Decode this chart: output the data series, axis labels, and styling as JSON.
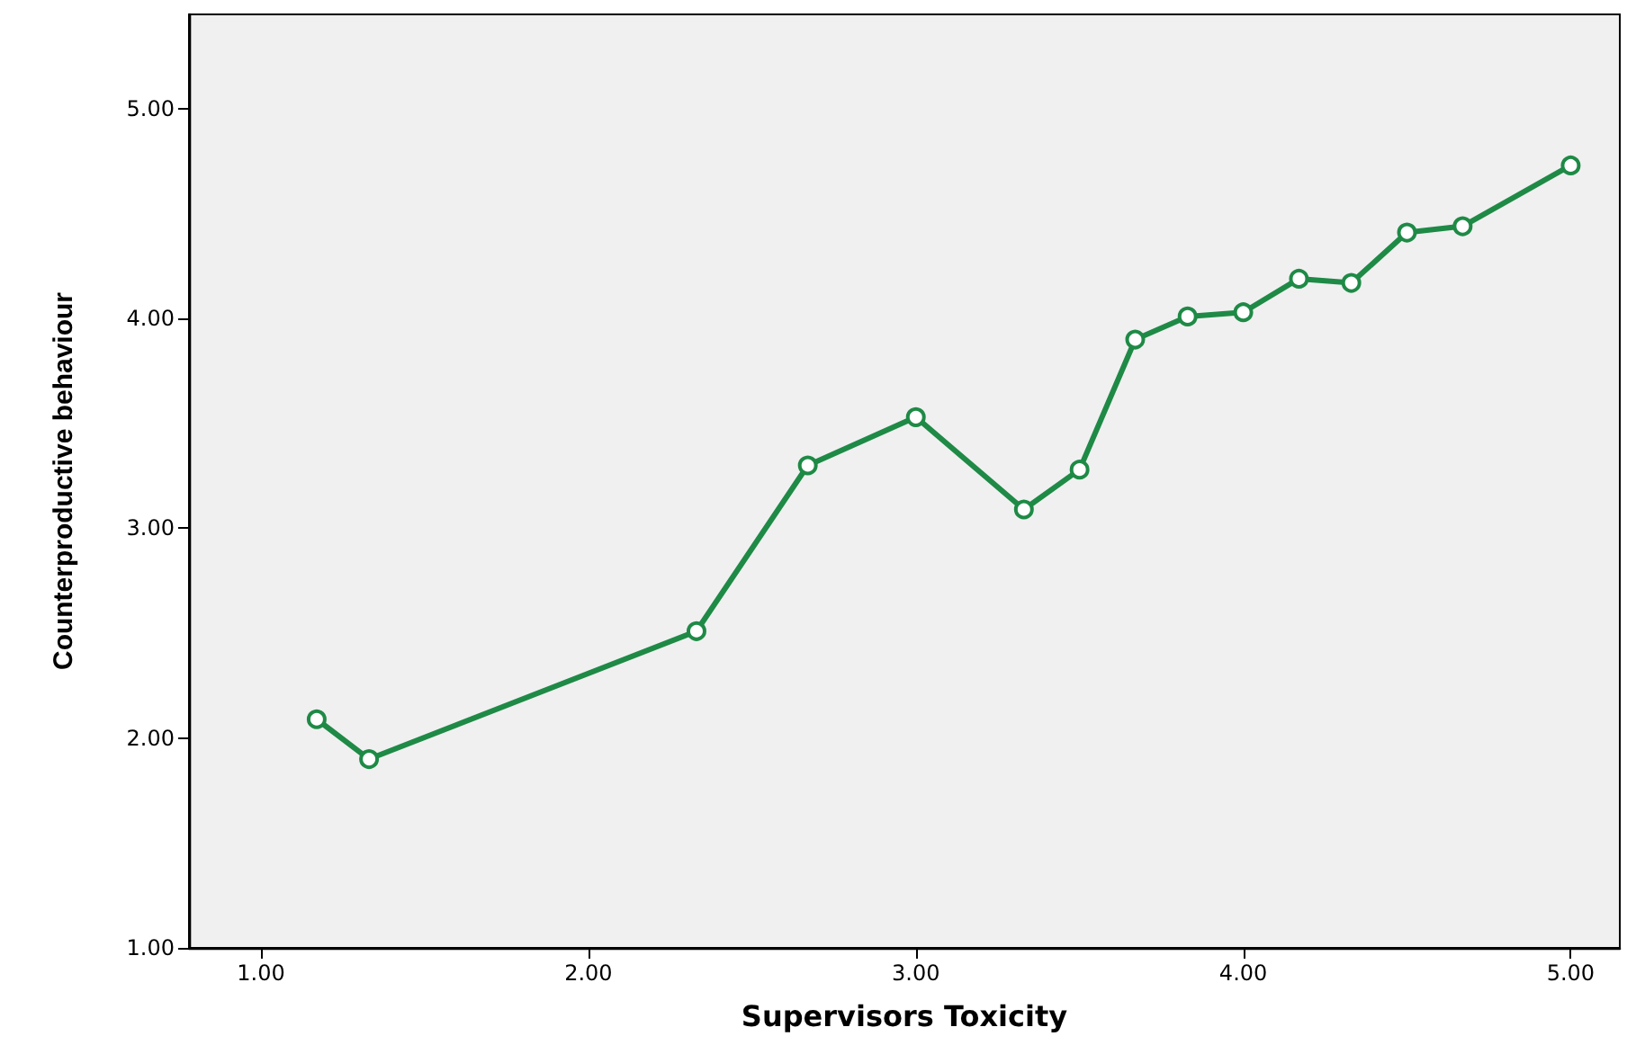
{
  "chart_data": {
    "type": "line",
    "xlabel": "Supervisors Toxicity",
    "ylabel": "Counterproductive behaviour",
    "x": [
      1.17,
      1.33,
      2.33,
      2.67,
      3.0,
      3.33,
      3.5,
      3.67,
      3.83,
      4.0,
      4.17,
      4.33,
      4.5,
      4.67,
      5.0
    ],
    "series": [
      {
        "color": "#1e8a46",
        "values": [
          2.09,
          1.9,
          2.51,
          3.3,
          3.53,
          3.09,
          3.28,
          3.9,
          4.01,
          4.03,
          4.19,
          4.17,
          4.41,
          4.44,
          4.73
        ]
      }
    ],
    "xlim": [
      0.78,
      5.15
    ],
    "ylim": [
      1.0,
      5.45
    ],
    "xticks": [
      {
        "value": 1,
        "label": "1.00"
      },
      {
        "value": 2,
        "label": "2.00"
      },
      {
        "value": 3,
        "label": "3.00"
      },
      {
        "value": 4,
        "label": "4.00"
      },
      {
        "value": 5,
        "label": "5.00"
      }
    ],
    "yticks": [
      {
        "value": 1,
        "label": "1.00"
      },
      {
        "value": 2,
        "label": "2.00"
      },
      {
        "value": 3,
        "label": "3.00"
      },
      {
        "value": 4,
        "label": "4.00"
      },
      {
        "value": 5,
        "label": "5.00"
      }
    ],
    "marker": "circle",
    "grid": false
  }
}
